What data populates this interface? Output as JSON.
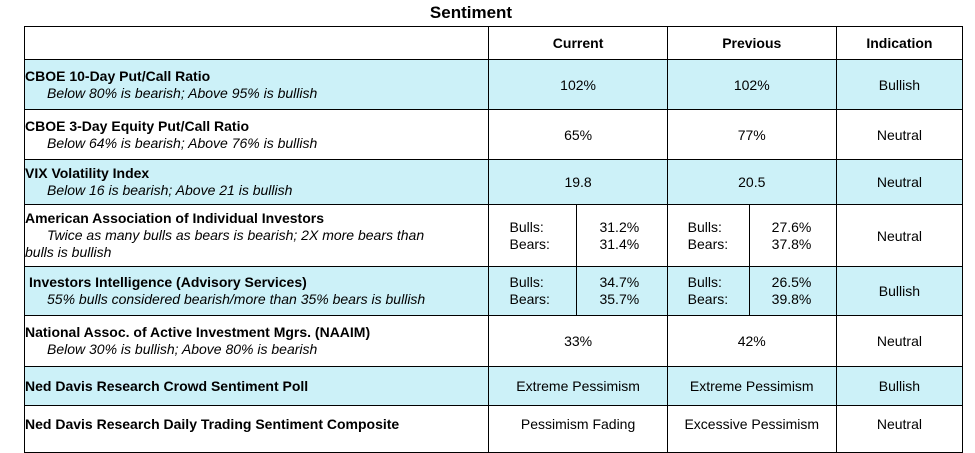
{
  "title": "Sentiment",
  "headers": {
    "current": "Current",
    "previous": "Previous",
    "indication": "Indication"
  },
  "labels": {
    "bulls": "Bulls:",
    "bears": "Bears:"
  },
  "rows": [
    {
      "name": "CBOE 10-Day Put/Call Ratio",
      "note": "Below 80% is bearish; Above 95% is bullish",
      "current": "102%",
      "previous": "102%",
      "indication": "Bullish"
    },
    {
      "name": "CBOE 3-Day Equity Put/Call Ratio",
      "note": "Below 64% is bearish; Above 76% is bullish",
      "current": "65%",
      "previous": "77%",
      "indication": "Neutral"
    },
    {
      "name": "VIX Volatility Index",
      "note": "Below 16 is bearish; Above 21 is bullish",
      "current": "19.8",
      "previous": "20.5",
      "indication": "Neutral"
    },
    {
      "name": "American Association of Individual Investors",
      "note_line1": "Twice as many bulls as bears is bearish; 2X more bears than",
      "note_line2": "bulls is bullish",
      "current_bulls": "31.2%",
      "current_bears": "31.4%",
      "previous_bulls": "27.6%",
      "previous_bears": "37.8%",
      "indication": "Neutral"
    },
    {
      "name": "Investors Intelligence (Advisory Services)",
      "note": "55% bulls considered bearish/more than 35% bears is bullish",
      "current_bulls": "34.7%",
      "current_bears": "35.7%",
      "previous_bulls": "26.5%",
      "previous_bears": "39.8%",
      "indication": "Bullish"
    },
    {
      "name": "National Assoc. of Active Investment Mgrs. (NAAIM)",
      "note": "Below 30% is bullish; Above 80% is bearish",
      "current": "33%",
      "previous": "42%",
      "indication": "Neutral"
    },
    {
      "name": "Ned Davis Research Crowd Sentiment Poll",
      "current": "Extreme Pessimism",
      "previous": "Extreme Pessimism",
      "indication": "Bullish"
    },
    {
      "name": "Ned Davis Research Daily Trading Sentiment Composite",
      "current": "Pessimism Fading",
      "previous": "Excessive Pessimism",
      "indication": "Neutral"
    }
  ],
  "colors": {
    "row_tint": "#ccf1f8",
    "border": "#000000"
  }
}
